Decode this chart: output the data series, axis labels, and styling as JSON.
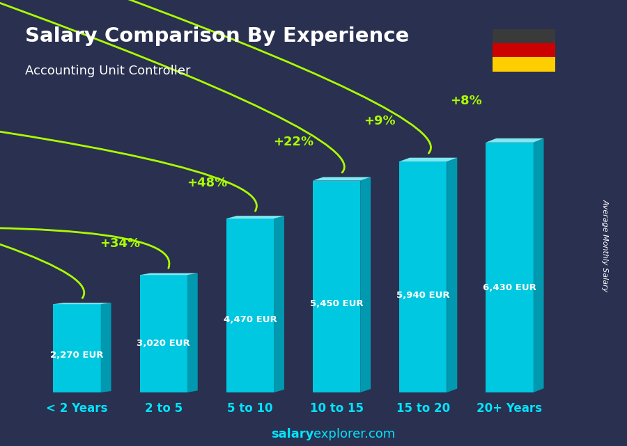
{
  "title": "Salary Comparison By Experience",
  "subtitle": "Accounting Unit Controller",
  "categories": [
    "< 2 Years",
    "2 to 5",
    "5 to 10",
    "10 to 15",
    "15 to 20",
    "20+ Years"
  ],
  "values": [
    2270,
    3020,
    4470,
    5450,
    5940,
    6430
  ],
  "labels": [
    "2,270 EUR",
    "3,020 EUR",
    "4,470 EUR",
    "5,450 EUR",
    "5,940 EUR",
    "6,430 EUR"
  ],
  "pct_labels": [
    "+34%",
    "+48%",
    "+22%",
    "+9%",
    "+8%"
  ],
  "bar_color_face": "#00c8e0",
  "bar_color_side": "#0099b0",
  "bar_color_top": "#80e8f0",
  "bg_color": "#2a3050",
  "title_color": "#ffffff",
  "subtitle_color": "#ffffff",
  "label_color": "#ffffff",
  "pct_color": "#aaff00",
  "xlabel_color": "#00e5ff",
  "ylabel_text": "Average Monthly Salary",
  "watermark_bold": "salary",
  "watermark_rest": "explorer.com",
  "ylim": [
    0,
    7800
  ],
  "figsize": [
    9.0,
    6.41
  ]
}
